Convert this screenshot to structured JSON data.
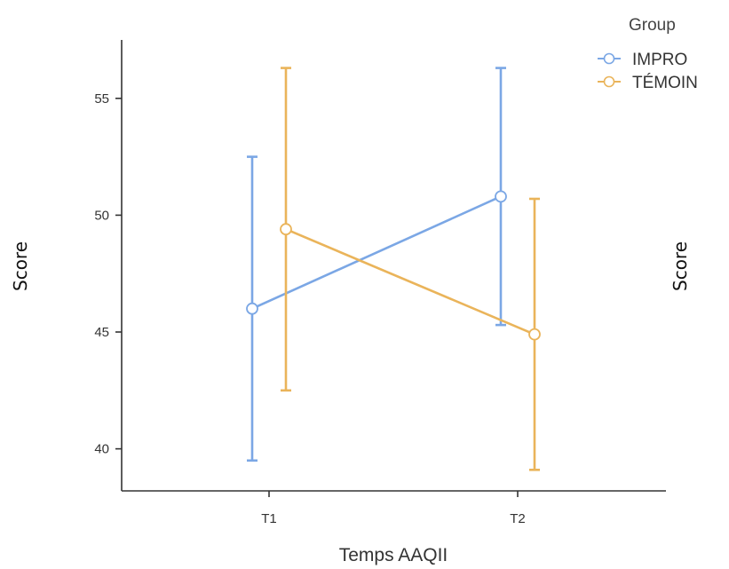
{
  "chart_data": {
    "type": "line",
    "xlabel": "Temps AAQII",
    "ylabel": "Score",
    "ylabel_right": "Score",
    "categories": [
      "T1",
      "T2"
    ],
    "ylim": [
      38.2,
      57.5
    ],
    "yticks": [
      40,
      45,
      50,
      55
    ],
    "grid": false,
    "legend": {
      "title": "Group",
      "placement": "top-right"
    },
    "series": [
      {
        "name": "IMPRO",
        "color": "#7ba7e5",
        "values": [
          46.0,
          50.8
        ],
        "error_low": [
          39.5,
          45.3
        ],
        "error_high": [
          52.5,
          56.3
        ]
      },
      {
        "name": "TÉMOIN",
        "color": "#eab45a",
        "values": [
          49.4,
          44.9
        ],
        "error_low": [
          42.5,
          39.1
        ],
        "error_high": [
          56.3,
          50.7
        ]
      }
    ]
  }
}
